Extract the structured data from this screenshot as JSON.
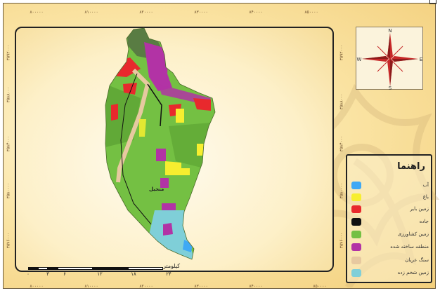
{
  "x_ticks": [
    "۸۰۰۰۰۰",
    "۸۱۰۰۰۰",
    "۸۲۰۰۰۰",
    "۸۳۰۰۰۰",
    "۸۴۰۰۰۰",
    "۸۵۰۰۰۰"
  ],
  "y_ticks": [
    "۳۵۹۲۰۰۰",
    "۳۵۸۸۰۰۰",
    "۳۵۸۴۰۰۰",
    "۳۵۸۰۰۰۰",
    "۳۵۷۶۰۰۰"
  ],
  "compass": {
    "n": "N",
    "s": "S",
    "e": "E",
    "w": "W"
  },
  "legend": {
    "title": "راهنما",
    "items": [
      {
        "label": "آب",
        "color": "#3fa9f5"
      },
      {
        "label": "باغ",
        "color": "#f7ee2f"
      },
      {
        "label": "زمین بایر",
        "color": "#e8292d"
      },
      {
        "label": "جاده",
        "color": "#111111"
      },
      {
        "label": "زمین کشاورزی",
        "color": "#74c043"
      },
      {
        "label": "منطقه ساخته شده",
        "color": "#b233a5"
      },
      {
        "label": "سنگ عریان",
        "color": "#e7c9a0"
      },
      {
        "label": "زمین شخم زده",
        "color": "#7fcfd8"
      }
    ]
  },
  "scale": {
    "ticks": [
      "۰",
      "۳",
      "۶",
      "۱۲",
      "۱۸",
      "۲۴"
    ],
    "unit": "کیلومتر"
  },
  "city_label": "منجیل"
}
